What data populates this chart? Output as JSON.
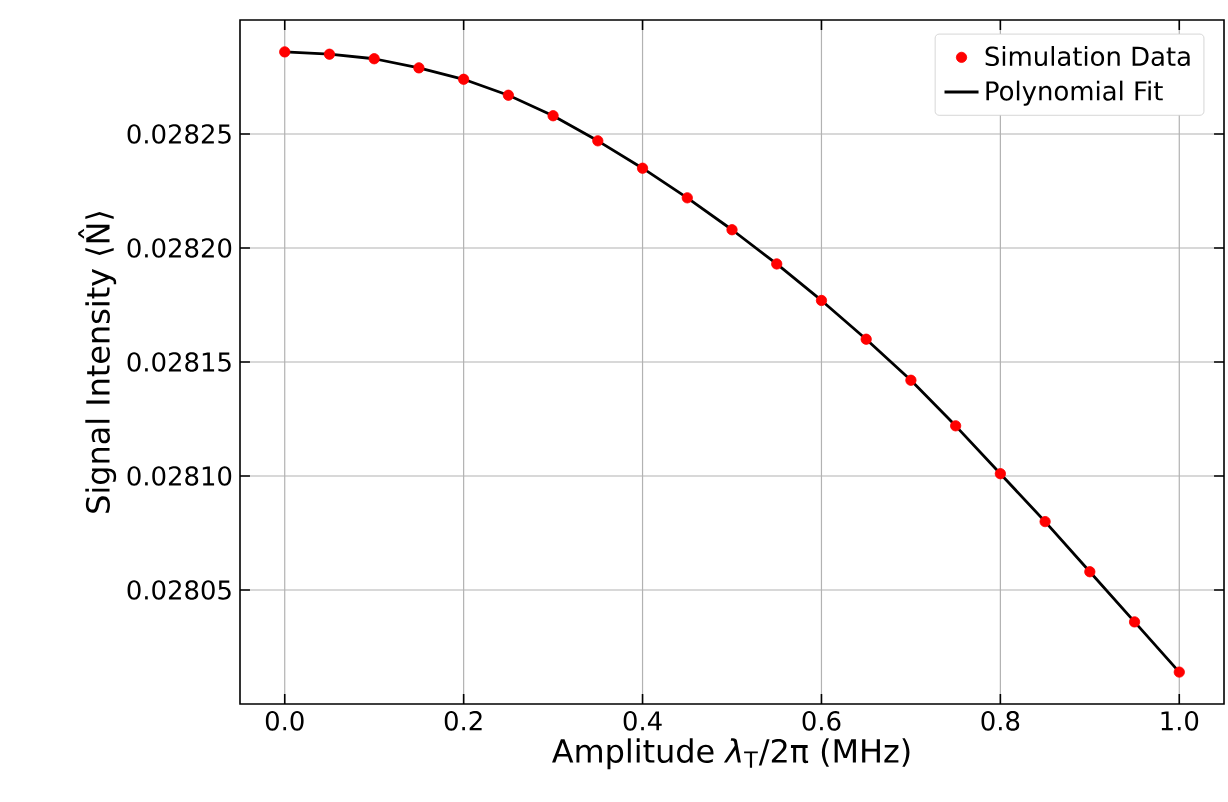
{
  "chart_data": {
    "type": "scatter",
    "xlabel": "Amplitude *λ*$_{T}$/2π (MHz)",
    "ylabel": "Signal Intensity ⟨N̂⟩",
    "x": [
      0,
      0.05,
      0.1,
      0.15,
      0.2,
      0.25,
      0.3,
      0.35,
      0.4,
      0.45,
      0.5,
      0.55,
      0.6,
      0.65,
      0.7,
      0.75,
      0.8,
      0.85,
      0.9,
      0.95,
      1.0
    ],
    "series": [
      {
        "name": "Simulation Data",
        "marker": "circle",
        "color": "#ff0000",
        "values": [
          0.028286,
          0.028285,
          0.028283,
          0.028279,
          0.028274,
          0.028267,
          0.028258,
          0.028247,
          0.028235,
          0.028222,
          0.028208,
          0.028193,
          0.028177,
          0.02816,
          0.028142,
          0.028122,
          0.028101,
          0.02808,
          0.028058,
          0.028036,
          0.028014
        ]
      },
      {
        "name": "Polynomial Fit",
        "type": "line",
        "marker": "none",
        "line_style": "solid",
        "color": "#000000",
        "values": [
          0.028286,
          0.028285,
          0.028283,
          0.028279,
          0.028274,
          0.028267,
          0.028258,
          0.028247,
          0.028235,
          0.028222,
          0.028208,
          0.028193,
          0.028177,
          0.02816,
          0.028142,
          0.028122,
          0.028101,
          0.02808,
          0.028058,
          0.028036,
          0.028014
        ]
      }
    ],
    "xlim": [
      -0.05,
      1.05
    ],
    "ylim": [
      0.028,
      0.0283
    ],
    "xticks": [
      {
        "value": 0,
        "label": "0.0"
      },
      0.2,
      0.4,
      0.6,
      0.8,
      {
        "value": 1,
        "label": "1.0"
      }
    ],
    "yticks": [
      0.02805,
      {
        "value": 0.0281,
        "label": "0.02810"
      },
      0.02815,
      {
        "value": 0.0282,
        "label": "0.02820"
      },
      0.02825
    ],
    "grid": true,
    "legend": "top right"
  }
}
